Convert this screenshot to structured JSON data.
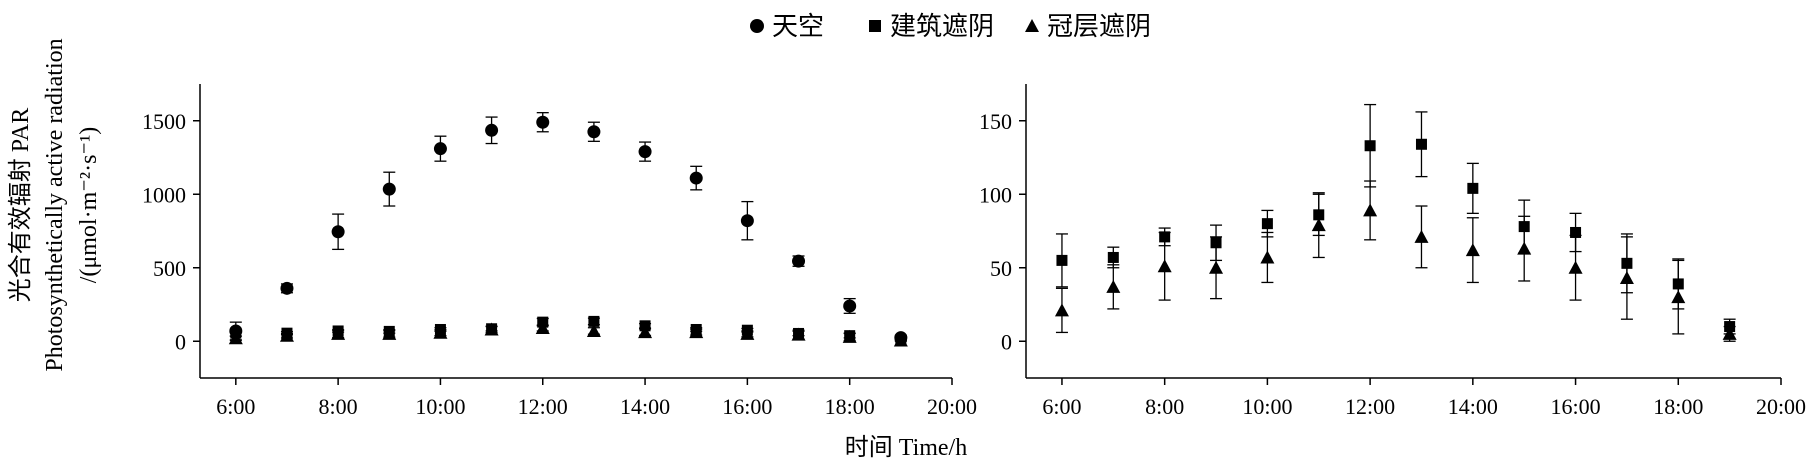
{
  "legend": {
    "items": [
      {
        "label": "天空",
        "marker": "circle"
      },
      {
        "label": "建筑遮阴",
        "marker": "square"
      },
      {
        "label": "冠层遮阴",
        "marker": "triangle"
      }
    ]
  },
  "xlabel": "时间 Time/h",
  "ylabel_lines": [
    "光合有效辐射 PAR",
    "Photosynthetically active radiation",
    "/(μmol·m⁻²·s⁻¹)"
  ],
  "chart_data": [
    {
      "type": "scatter",
      "x_ticks": [
        "6:00",
        "8:00",
        "10:00",
        "12:00",
        "14:00",
        "16:00",
        "18:00",
        "20:00"
      ],
      "y_ticks": [
        "0",
        "500",
        "1000",
        "1500"
      ],
      "xlim": [
        5.3,
        20
      ],
      "ylim": [
        -250,
        1750
      ],
      "y_tick_values": [
        0,
        500,
        1000,
        1500
      ],
      "x": [
        6,
        7,
        8,
        9,
        10,
        11,
        12,
        13,
        14,
        15,
        16,
        17,
        18,
        19
      ],
      "series": [
        {
          "name": "天空",
          "marker": "circle",
          "values": [
            70,
            360,
            745,
            1035,
            1310,
            1435,
            1490,
            1425,
            1290,
            1110,
            820,
            545,
            240,
            25
          ],
          "err": [
            60,
            30,
            120,
            115,
            85,
            90,
            65,
            65,
            65,
            80,
            130,
            35,
            50,
            15
          ]
        },
        {
          "name": "建筑遮阴",
          "marker": "square",
          "values": [
            55,
            55,
            70,
            67,
            80,
            85,
            130,
            135,
            105,
            80,
            75,
            53,
            38,
            10
          ],
          "err": [
            20,
            10,
            8,
            12,
            12,
            15,
            25,
            22,
            15,
            12,
            12,
            15,
            15,
            5
          ]
        },
        {
          "name": "冠层遮阴",
          "marker": "triangle",
          "values": [
            20,
            37,
            50,
            50,
            58,
            80,
            90,
            70,
            62,
            62,
            50,
            45,
            30,
            5
          ],
          "err": [
            15,
            15,
            25,
            22,
            20,
            22,
            20,
            22,
            22,
            20,
            20,
            30,
            25,
            5
          ]
        }
      ]
    },
    {
      "type": "scatter",
      "x_ticks": [
        "6:00",
        "8:00",
        "10:00",
        "12:00",
        "14:00",
        "16:00",
        "18:00",
        "20:00"
      ],
      "y_ticks": [
        "0",
        "50",
        "100",
        "150"
      ],
      "xlim": [
        5.3,
        20
      ],
      "ylim": [
        -25,
        175
      ],
      "y_tick_values": [
        0,
        50,
        100,
        150
      ],
      "x": [
        6,
        7,
        8,
        9,
        10,
        11,
        12,
        13,
        14,
        15,
        16,
        17,
        18,
        19
      ],
      "series": [
        {
          "name": "建筑遮阴",
          "marker": "square",
          "values": [
            55,
            57,
            71,
            67,
            80,
            86,
            133,
            134,
            104,
            78,
            74,
            53,
            39,
            10
          ],
          "err": [
            18,
            7,
            6,
            12,
            9,
            14,
            28,
            22,
            17,
            18,
            13,
            20,
            17,
            5
          ]
        },
        {
          "name": "冠层遮阴",
          "marker": "triangle",
          "values": [
            21,
            37,
            51,
            50,
            57,
            79,
            89,
            71,
            62,
            63,
            50,
            43,
            30,
            5
          ],
          "err": [
            15,
            15,
            23,
            21,
            17,
            22,
            20,
            21,
            22,
            22,
            22,
            28,
            25,
            5
          ]
        }
      ]
    }
  ]
}
